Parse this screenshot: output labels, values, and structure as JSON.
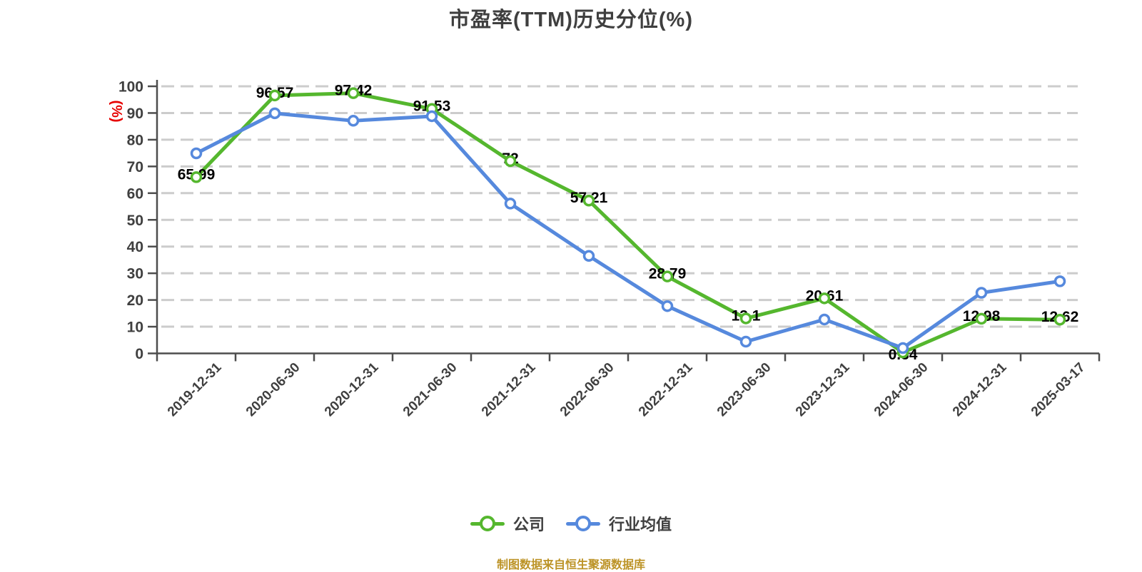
{
  "title": "市盈率(TTM)历史分位(%)",
  "footer": "制图数据来自恒生聚源数据库",
  "colors": {
    "company": "#55b72e",
    "industry": "#5689dd",
    "title_text": "#3f3f3f",
    "axis_text": "#3f3f3f",
    "axis_line": "#4d4d4d",
    "grid": "#cccccc",
    "data_label": "#000000",
    "unit_label": "#e60000",
    "footer_text": "#bc9326",
    "marker_fill": "#ffffff"
  },
  "chart_data": {
    "type": "line",
    "title": "市盈率(TTM)历史分位(%)",
    "ylabel": "(%)",
    "xlabel": "",
    "ylim": [
      0,
      100
    ],
    "yticks": [
      0,
      10,
      20,
      30,
      40,
      50,
      60,
      70,
      80,
      90,
      100
    ],
    "grid": "horizontal-dashed",
    "legend_position": "bottom",
    "categories": [
      "2019-12-31",
      "2020-06-30",
      "2020-12-31",
      "2021-06-30",
      "2021-12-31",
      "2022-06-30",
      "2022-12-31",
      "2023-06-30",
      "2023-12-31",
      "2024-06-30",
      "2024-12-31",
      "2025-03-17"
    ],
    "series": [
      {
        "name": "公司",
        "color": "#55b72e",
        "values": [
          65.99,
          96.57,
          97.42,
          91.53,
          72,
          57.21,
          28.79,
          13.1,
          20.61,
          0.34,
          12.98,
          12.62
        ],
        "labels": [
          "65.99",
          "96.57",
          "97.42",
          "91.53",
          "72",
          "57.21",
          "28.79",
          "13.1",
          "20.61",
          "0.34",
          "12.98",
          "12.62"
        ]
      },
      {
        "name": "行业均值",
        "color": "#5689dd",
        "values": [
          74.9,
          89.9,
          87.1,
          88.8,
          56.1,
          36.5,
          17.7,
          4.4,
          12.7,
          2.0,
          22.7,
          27.0
        ],
        "labels": []
      }
    ]
  }
}
